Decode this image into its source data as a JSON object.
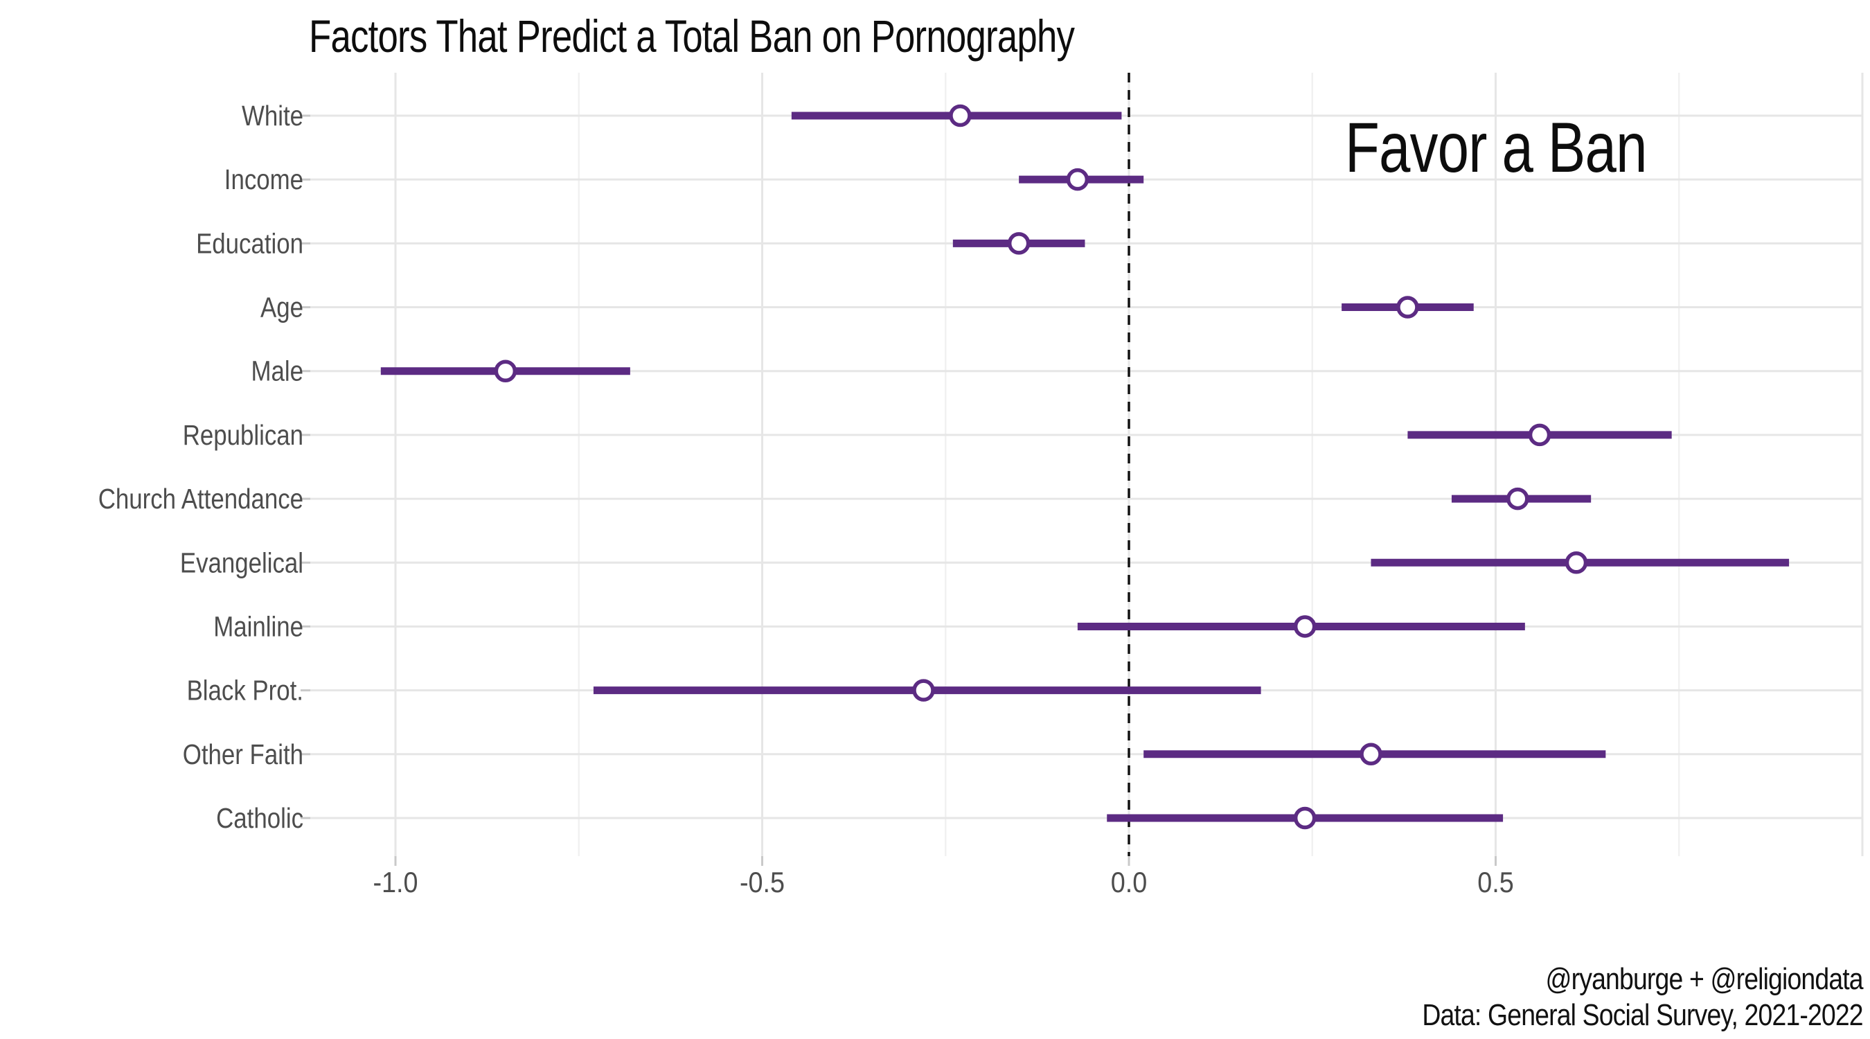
{
  "page": {
    "title": "Factors That Predict a Total Ban on Pornography",
    "annotation": "Favor a Ban",
    "caption_line1": "@ryanburge + @religiondata",
    "caption_line2": "Data: General Social Survey, 2021-2022"
  },
  "colors": {
    "point_and_bar": "#5c2b83",
    "marker_fill": "#ffffff",
    "grid_major": "#e6e6e6",
    "grid_minor": "#f1f1f1",
    "axis_tick_mark": "#c9c9c9",
    "axis_text": "#4d4d4d",
    "zero_line": "#111111",
    "background": "#ffffff",
    "title_text": "#0d0d0d"
  },
  "chart_data": {
    "type": "scatter",
    "subtype": "horizontal-coefficient-plot-with-error-bars",
    "title": "Factors That Predict a Total Ban on Pornography",
    "annotation": "Favor a Ban",
    "xlabel": "",
    "ylabel": "",
    "legend": "none",
    "grid": "major-and-minor-vertical, major-horizontal-per-row",
    "x_ticks": [
      -1.0,
      -0.5,
      0.0,
      0.5
    ],
    "x_tick_labels": [
      "-1.0",
      "-0.5",
      "0.0",
      "0.5"
    ],
    "x_minor_gridlines": [
      -0.75,
      -0.25,
      0.25,
      0.75
    ],
    "x_unlabeled_gridlines": [
      1.0
    ],
    "xlim": [
      -1.12,
      1.0
    ],
    "zero_reference_line": 0.0,
    "categories": [
      "White",
      "Income",
      "Education",
      "Age",
      "Male",
      "Republican",
      "Church Attendance",
      "Evangelical",
      "Mainline",
      "Black Prot.",
      "Other Faith",
      "Catholic"
    ],
    "rows": [
      {
        "label": "White",
        "estimate": -0.23,
        "ci_low": -0.46,
        "ci_high": -0.01
      },
      {
        "label": "Income",
        "estimate": -0.07,
        "ci_low": -0.15,
        "ci_high": 0.02
      },
      {
        "label": "Education",
        "estimate": -0.15,
        "ci_low": -0.24,
        "ci_high": -0.06
      },
      {
        "label": "Age",
        "estimate": 0.38,
        "ci_low": 0.29,
        "ci_high": 0.47
      },
      {
        "label": "Male",
        "estimate": -0.85,
        "ci_low": -1.02,
        "ci_high": -0.68
      },
      {
        "label": "Republican",
        "estimate": 0.56,
        "ci_low": 0.38,
        "ci_high": 0.74
      },
      {
        "label": "Church Attendance",
        "estimate": 0.53,
        "ci_low": 0.44,
        "ci_high": 0.63
      },
      {
        "label": "Evangelical",
        "estimate": 0.61,
        "ci_low": 0.33,
        "ci_high": 0.9
      },
      {
        "label": "Mainline",
        "estimate": 0.24,
        "ci_low": -0.07,
        "ci_high": 0.54
      },
      {
        "label": "Black Prot.",
        "estimate": -0.28,
        "ci_low": -0.73,
        "ci_high": 0.18
      },
      {
        "label": "Other Faith",
        "estimate": 0.33,
        "ci_low": 0.02,
        "ci_high": 0.65
      },
      {
        "label": "Catholic",
        "estimate": 0.24,
        "ci_low": -0.03,
        "ci_high": 0.51
      }
    ]
  }
}
